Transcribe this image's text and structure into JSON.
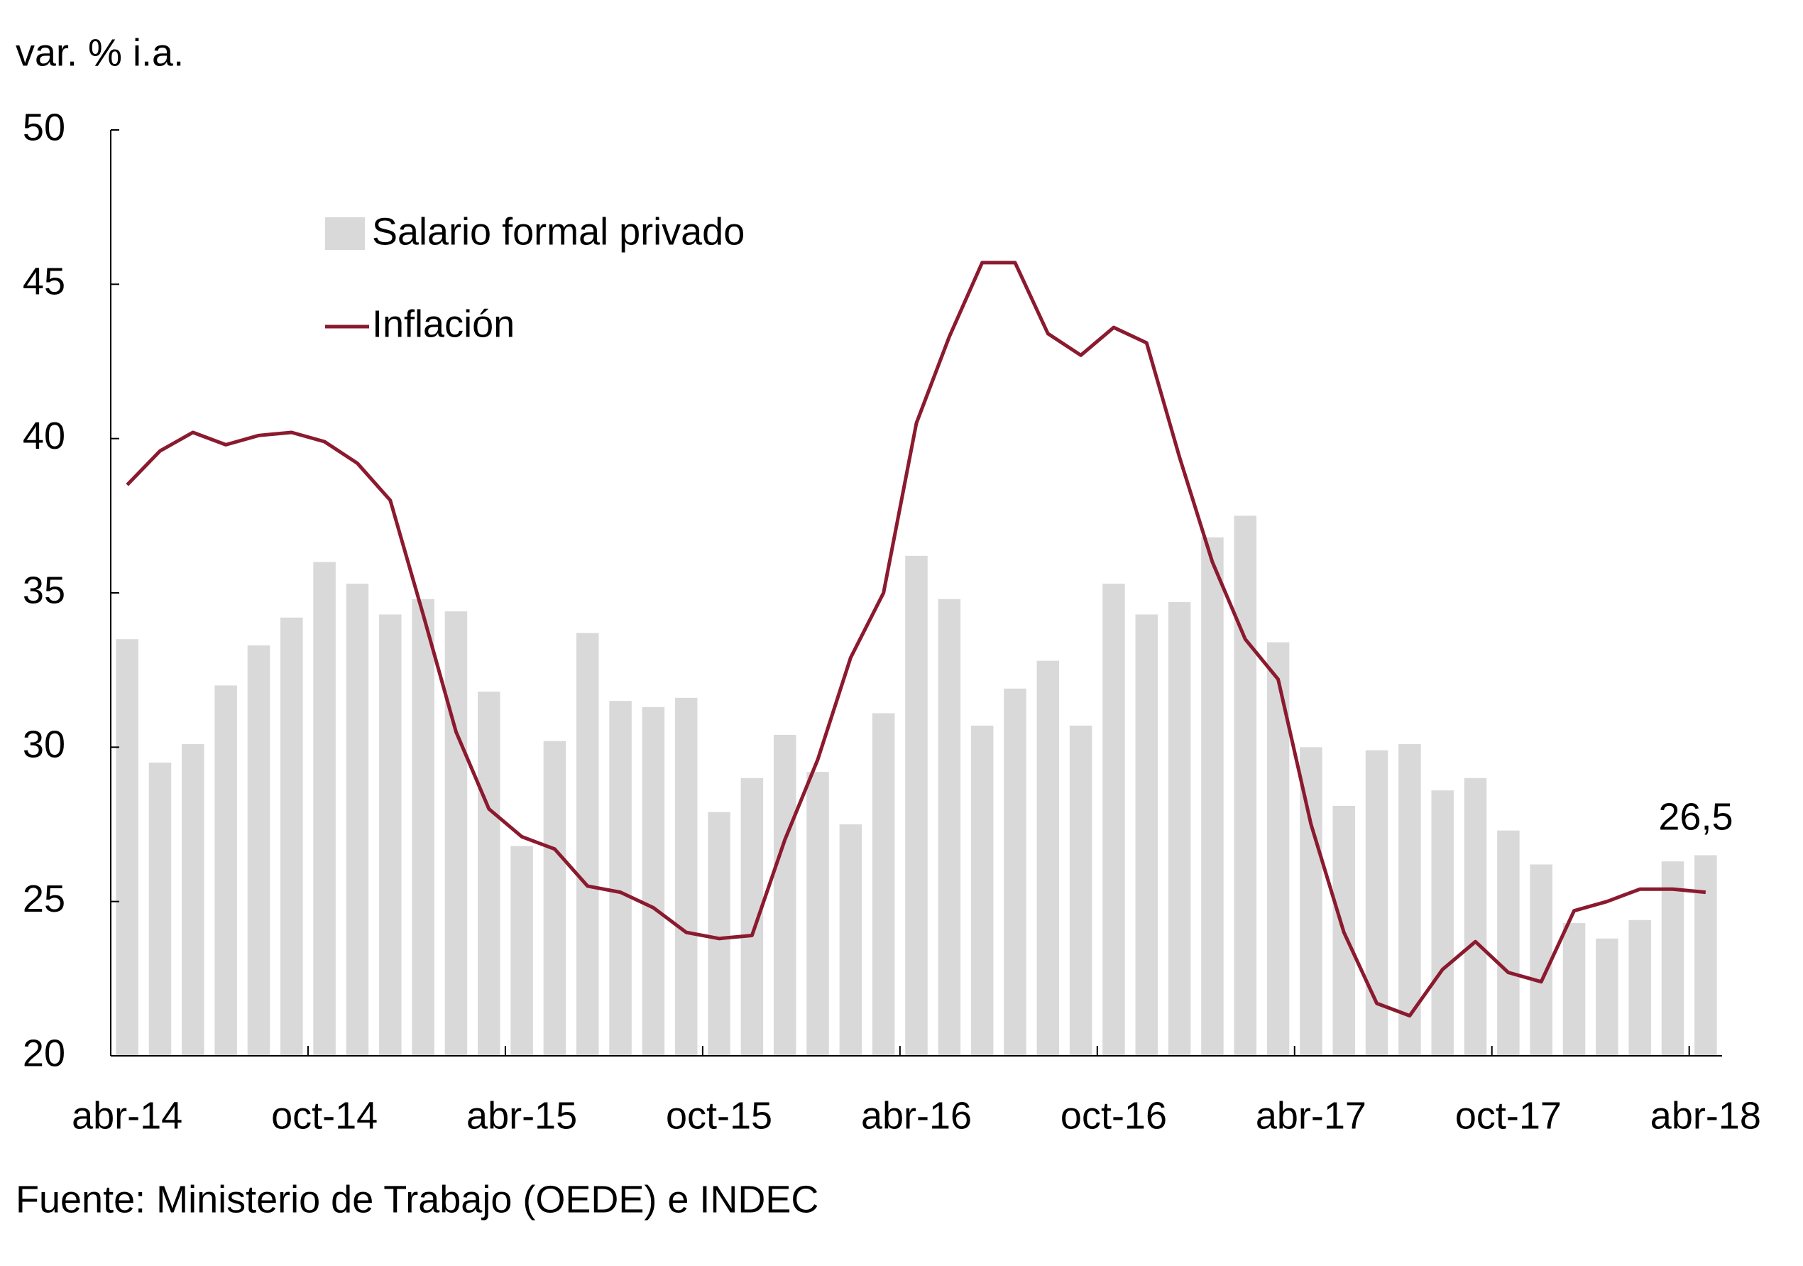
{
  "chart_data": {
    "type": "bar-line",
    "y_label": "var. % i.a.",
    "source": "Fuente: Ministerio de Trabajo (OEDE) e INDEC",
    "categories": [
      "abr-14",
      null,
      null,
      null,
      null,
      null,
      "oct-14",
      null,
      null,
      null,
      null,
      null,
      "abr-15",
      null,
      null,
      null,
      null,
      null,
      "oct-15",
      null,
      null,
      null,
      null,
      null,
      "abr-16",
      null,
      null,
      null,
      null,
      null,
      "oct-16",
      null,
      null,
      null,
      null,
      null,
      "abr-17",
      null,
      null,
      null,
      null,
      null,
      "oct-17",
      null,
      null,
      null,
      null,
      null,
      "abr-18"
    ],
    "series": [
      {
        "name": "Salario formal privado",
        "type": "bar",
        "color": "#d9d9d9",
        "values": [
          33.5,
          29.5,
          30.1,
          32.0,
          33.3,
          34.2,
          36.0,
          35.3,
          34.3,
          34.8,
          34.4,
          31.8,
          26.8,
          30.2,
          33.7,
          31.5,
          31.3,
          31.6,
          27.9,
          29.0,
          30.4,
          29.2,
          27.5,
          31.1,
          36.2,
          34.8,
          30.7,
          31.9,
          32.8,
          30.7,
          35.3,
          34.3,
          34.7,
          36.8,
          37.5,
          33.4,
          30.0,
          28.1,
          29.9,
          30.1,
          28.6,
          29.0,
          27.3,
          26.2,
          24.3,
          23.8,
          24.4,
          26.3,
          26.5
        ],
        "value_labels": [
          null,
          null,
          null,
          null,
          null,
          null,
          null,
          null,
          null,
          null,
          null,
          null,
          null,
          null,
          null,
          null,
          null,
          null,
          null,
          null,
          null,
          null,
          null,
          null,
          null,
          null,
          null,
          null,
          null,
          null,
          null,
          null,
          null,
          null,
          null,
          null,
          null,
          null,
          null,
          null,
          null,
          null,
          null,
          null,
          null,
          null,
          null,
          null,
          "26,5"
        ]
      },
      {
        "name": "Inflación",
        "type": "line",
        "color": "#8b1a2f",
        "values": [
          38.5,
          39.6,
          40.2,
          39.8,
          40.1,
          40.2,
          39.9,
          39.2,
          38.0,
          34.3,
          30.5,
          28.0,
          27.1,
          26.7,
          25.5,
          25.3,
          24.8,
          24.0,
          23.8,
          23.9,
          27.0,
          29.6,
          32.9,
          35.0,
          40.5,
          43.3,
          45.7,
          45.7,
          43.4,
          42.7,
          43.6,
          43.1,
          39.4,
          36.0,
          33.5,
          32.2,
          27.5,
          24.0,
          21.7,
          21.3,
          22.8,
          23.7,
          22.7,
          22.4,
          24.7,
          25.0,
          25.4,
          25.4,
          25.3
        ]
      }
    ],
    "ylim": [
      20,
      50
    ],
    "yticks": [
      20,
      25,
      30,
      35,
      40,
      45,
      50
    ],
    "grid": false,
    "legend": "upper left"
  }
}
